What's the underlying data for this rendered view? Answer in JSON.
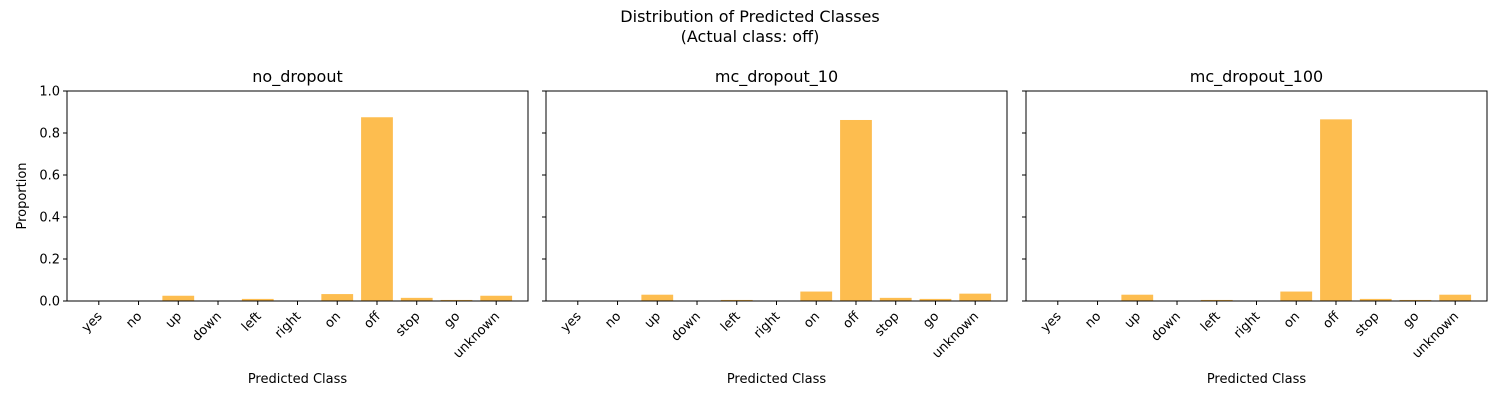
{
  "suptitle": {
    "line1": "Distribution of Predicted Classes",
    "line2": "(Actual class: off)"
  },
  "bar_color": "#fdbd4f",
  "chart_data": [
    {
      "type": "bar",
      "title": "no_dropout",
      "xlabel": "Predicted Class",
      "ylabel": "Proportion",
      "ylim": [
        0,
        1.0
      ],
      "yticks": [
        "0.0",
        "0.2",
        "0.4",
        "0.6",
        "0.8",
        "1.0"
      ],
      "categories": [
        "yes",
        "no",
        "up",
        "down",
        "left",
        "right",
        "on",
        "off",
        "stop",
        "go",
        "unknown"
      ],
      "values": [
        0.0,
        0.0,
        0.025,
        0.0,
        0.01,
        0.0,
        0.033,
        0.875,
        0.015,
        0.005,
        0.025
      ]
    },
    {
      "type": "bar",
      "title": "mc_dropout_10",
      "xlabel": "Predicted Class",
      "ylabel": "",
      "ylim": [
        0,
        1.0
      ],
      "yticks": [],
      "categories": [
        "yes",
        "no",
        "up",
        "down",
        "left",
        "right",
        "on",
        "off",
        "stop",
        "go",
        "unknown"
      ],
      "values": [
        0.0,
        0.0,
        0.03,
        0.0,
        0.005,
        0.0,
        0.045,
        0.862,
        0.015,
        0.01,
        0.035
      ]
    },
    {
      "type": "bar",
      "title": "mc_dropout_100",
      "xlabel": "Predicted Class",
      "ylabel": "",
      "ylim": [
        0,
        1.0
      ],
      "yticks": [],
      "categories": [
        "yes",
        "no",
        "up",
        "down",
        "left",
        "right",
        "on",
        "off",
        "stop",
        "go",
        "unknown"
      ],
      "values": [
        0.0,
        0.0,
        0.03,
        0.0,
        0.005,
        0.0,
        0.045,
        0.865,
        0.01,
        0.005,
        0.03
      ]
    }
  ]
}
